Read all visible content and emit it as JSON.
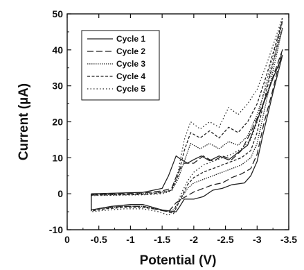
{
  "chart_data": {
    "type": "line",
    "xlabel": "Potential (V)",
    "ylabel": "Current (µA)",
    "xlim": [
      0,
      -3.5
    ],
    "ylim": [
      -10,
      50
    ],
    "x_ticks": [
      0,
      -0.5,
      -1,
      -1.5,
      -2,
      -2.5,
      -3,
      -3.5
    ],
    "x_tick_labels": [
      "0",
      "-0.5",
      "-1",
      "-1.5",
      "-2",
      "-2.5",
      "-3",
      "-3.5"
    ],
    "y_ticks": [
      -10,
      0,
      10,
      20,
      30,
      40,
      50
    ],
    "y_tick_labels": [
      "-10",
      "0",
      "10",
      "20",
      "30",
      "40",
      "50"
    ],
    "legend_position": "top-left",
    "series": [
      {
        "name": "Cycle 1",
        "style": "solid",
        "forward": [
          [
            -0.38,
            0
          ],
          [
            -0.8,
            0.2
          ],
          [
            -1.2,
            0.4
          ],
          [
            -1.5,
            1.5
          ],
          [
            -1.6,
            5
          ],
          [
            -1.72,
            10.5
          ],
          [
            -1.8,
            9.5
          ],
          [
            -1.9,
            8.5
          ],
          [
            -2.0,
            9.5
          ],
          [
            -2.12,
            10.5
          ],
          [
            -2.25,
            9.2
          ],
          [
            -2.4,
            10.5
          ],
          [
            -2.55,
            9.4
          ],
          [
            -2.7,
            11.5
          ],
          [
            -2.85,
            13.5
          ],
          [
            -2.95,
            18
          ],
          [
            -3.1,
            25
          ],
          [
            -3.25,
            32
          ],
          [
            -3.4,
            38.5
          ]
        ],
        "reverse": [
          [
            -3.4,
            38.5
          ],
          [
            -3.25,
            28
          ],
          [
            -3.1,
            17
          ],
          [
            -3.0,
            9
          ],
          [
            -2.9,
            5
          ],
          [
            -2.8,
            3
          ],
          [
            -2.6,
            2.5
          ],
          [
            -2.45,
            1.5
          ],
          [
            -2.3,
            1
          ],
          [
            -2.15,
            -0.8
          ],
          [
            -2.0,
            -1.5
          ],
          [
            -1.85,
            -1.5
          ],
          [
            -1.78,
            -3.5
          ],
          [
            -1.72,
            -5
          ],
          [
            -1.5,
            -4.5
          ],
          [
            -1.2,
            -3
          ],
          [
            -1.0,
            -3
          ],
          [
            -0.7,
            -3.5
          ],
          [
            -0.38,
            -4.5
          ]
        ]
      },
      {
        "name": "Cycle 2",
        "style": "dash",
        "forward": [
          [
            -0.38,
            -0.2
          ],
          [
            -0.8,
            0
          ],
          [
            -1.2,
            0.2
          ],
          [
            -1.5,
            0.8
          ],
          [
            -1.65,
            1.5
          ],
          [
            -1.75,
            6
          ],
          [
            -1.85,
            8.5
          ],
          [
            -2.0,
            8.5
          ],
          [
            -2.15,
            10.5
          ],
          [
            -2.3,
            9
          ],
          [
            -2.45,
            10.5
          ],
          [
            -2.6,
            9.5
          ],
          [
            -2.75,
            12
          ],
          [
            -2.9,
            17
          ],
          [
            -3.05,
            23
          ],
          [
            -3.2,
            30
          ],
          [
            -3.4,
            40
          ]
        ],
        "reverse": [
          [
            -3.4,
            40
          ],
          [
            -3.25,
            29
          ],
          [
            -3.1,
            19
          ],
          [
            -3.0,
            11
          ],
          [
            -2.9,
            7
          ],
          [
            -2.75,
            5.5
          ],
          [
            -2.6,
            4.5
          ],
          [
            -2.45,
            3
          ],
          [
            -2.3,
            2.5
          ],
          [
            -2.15,
            1.5
          ],
          [
            -2.0,
            0.5
          ],
          [
            -1.85,
            -1
          ],
          [
            -1.72,
            -2.5
          ],
          [
            -1.6,
            -5
          ],
          [
            -1.45,
            -4.5
          ],
          [
            -1.2,
            -3.5
          ],
          [
            -0.9,
            -3.5
          ],
          [
            -0.6,
            -3.8
          ],
          [
            -0.38,
            -4.5
          ]
        ]
      },
      {
        "name": "Cycle 3",
        "style": "fine-dot",
        "forward": [
          [
            -0.38,
            -0.3
          ],
          [
            -0.8,
            -0.2
          ],
          [
            -1.2,
            0
          ],
          [
            -1.5,
            0.5
          ],
          [
            -1.65,
            1
          ],
          [
            -1.75,
            4
          ],
          [
            -1.85,
            9
          ],
          [
            -1.95,
            14
          ],
          [
            -2.1,
            12.5
          ],
          [
            -2.25,
            14
          ],
          [
            -2.4,
            12.5
          ],
          [
            -2.55,
            14.5
          ],
          [
            -2.7,
            13.5
          ],
          [
            -2.85,
            16
          ],
          [
            -3.0,
            22
          ],
          [
            -3.15,
            30
          ],
          [
            -3.4,
            46
          ]
        ],
        "reverse": [
          [
            -3.4,
            46
          ],
          [
            -3.25,
            34
          ],
          [
            -3.1,
            22
          ],
          [
            -3.0,
            14
          ],
          [
            -2.9,
            10
          ],
          [
            -2.75,
            8
          ],
          [
            -2.6,
            7
          ],
          [
            -2.45,
            6
          ],
          [
            -2.3,
            5
          ],
          [
            -2.15,
            4
          ],
          [
            -2.0,
            3
          ],
          [
            -1.9,
            1.5
          ],
          [
            -1.78,
            -2
          ],
          [
            -1.65,
            -5
          ],
          [
            -1.5,
            -4.5
          ],
          [
            -1.2,
            -3.5
          ],
          [
            -0.9,
            -3.5
          ],
          [
            -0.6,
            -4
          ],
          [
            -0.38,
            -4.5
          ]
        ]
      },
      {
        "name": "Cycle 4",
        "style": "short-dash",
        "forward": [
          [
            -0.38,
            -0.4
          ],
          [
            -0.8,
            -0.3
          ],
          [
            -1.2,
            -0.2
          ],
          [
            -1.5,
            0.3
          ],
          [
            -1.65,
            1
          ],
          [
            -1.75,
            5
          ],
          [
            -1.85,
            12
          ],
          [
            -1.95,
            17
          ],
          [
            -2.1,
            15.5
          ],
          [
            -2.25,
            17.5
          ],
          [
            -2.4,
            15.5
          ],
          [
            -2.55,
            18.5
          ],
          [
            -2.7,
            17
          ],
          [
            -2.85,
            20
          ],
          [
            -3.0,
            25
          ],
          [
            -3.15,
            33
          ],
          [
            -3.4,
            48
          ]
        ],
        "reverse": [
          [
            -3.4,
            48
          ],
          [
            -3.25,
            36
          ],
          [
            -3.1,
            25
          ],
          [
            -3.0,
            17
          ],
          [
            -2.9,
            12
          ],
          [
            -2.75,
            10
          ],
          [
            -2.6,
            9
          ],
          [
            -2.45,
            8
          ],
          [
            -2.3,
            7
          ],
          [
            -2.15,
            6
          ],
          [
            -2.0,
            4.5
          ],
          [
            -1.9,
            2.5
          ],
          [
            -1.8,
            -1
          ],
          [
            -1.68,
            -5.5
          ],
          [
            -1.5,
            -4.5
          ],
          [
            -1.2,
            -3.8
          ],
          [
            -0.9,
            -3.8
          ],
          [
            -0.6,
            -4.2
          ],
          [
            -0.38,
            -4.8
          ]
        ]
      },
      {
        "name": "Cycle 5",
        "style": "dot",
        "forward": [
          [
            -0.38,
            -0.5
          ],
          [
            -0.8,
            -0.4
          ],
          [
            -1.2,
            -0.3
          ],
          [
            -1.5,
            0
          ],
          [
            -1.65,
            0.8
          ],
          [
            -1.75,
            6
          ],
          [
            -1.85,
            15
          ],
          [
            -1.95,
            20
          ],
          [
            -2.1,
            18
          ],
          [
            -2.25,
            20
          ],
          [
            -2.4,
            18.5
          ],
          [
            -2.55,
            24
          ],
          [
            -2.7,
            22
          ],
          [
            -2.85,
            25
          ],
          [
            -3.0,
            29
          ],
          [
            -3.15,
            36
          ],
          [
            -3.4,
            49
          ]
        ],
        "reverse": [
          [
            -3.4,
            49
          ],
          [
            -3.25,
            38
          ],
          [
            -3.1,
            28
          ],
          [
            -3.0,
            20
          ],
          [
            -2.9,
            15
          ],
          [
            -2.75,
            12.5
          ],
          [
            -2.6,
            11
          ],
          [
            -2.45,
            10
          ],
          [
            -2.3,
            9
          ],
          [
            -2.15,
            8
          ],
          [
            -2.0,
            6
          ],
          [
            -1.9,
            3.5
          ],
          [
            -1.8,
            0
          ],
          [
            -1.7,
            -4.5
          ],
          [
            -1.6,
            -6
          ],
          [
            -1.45,
            -5
          ],
          [
            -1.2,
            -4.2
          ],
          [
            -0.9,
            -4.2
          ],
          [
            -0.6,
            -4.6
          ],
          [
            -0.38,
            -5
          ]
        ]
      }
    ]
  }
}
